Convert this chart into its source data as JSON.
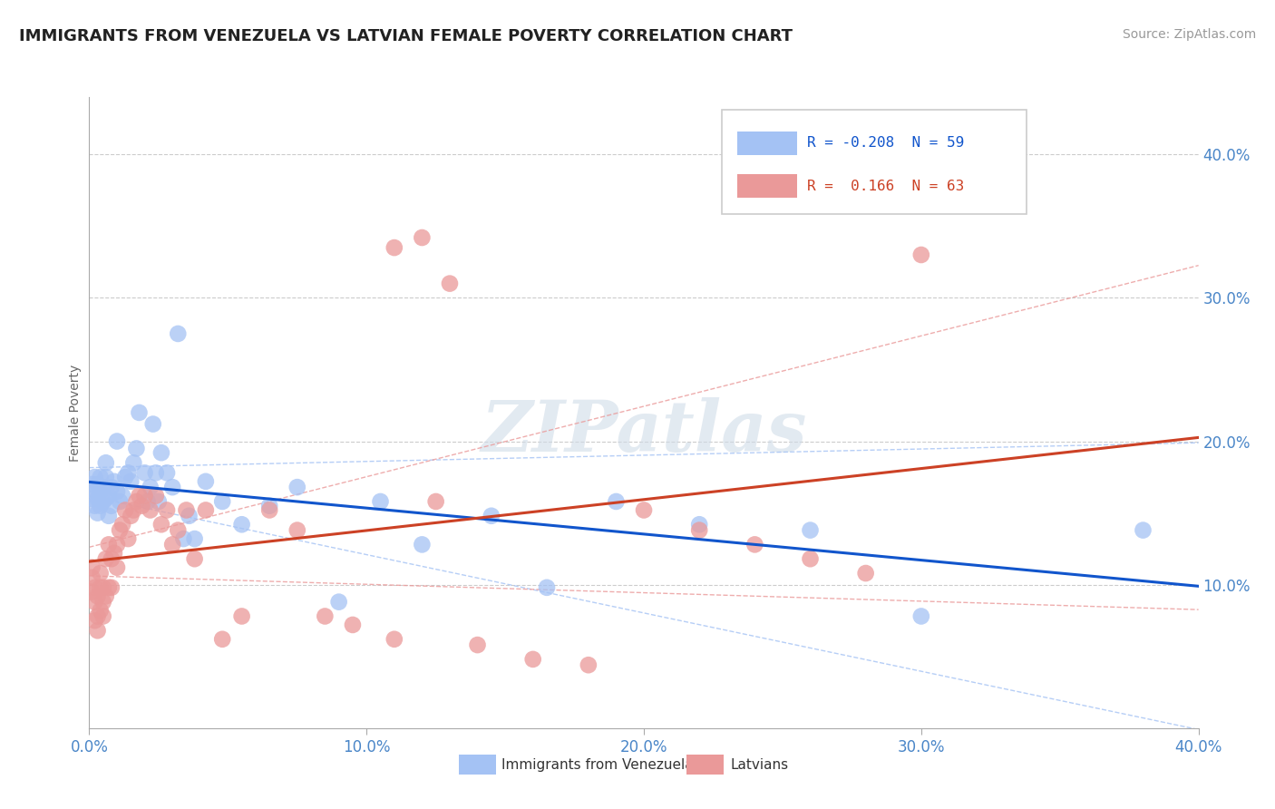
{
  "title": "IMMIGRANTS FROM VENEZUELA VS LATVIAN FEMALE POVERTY CORRELATION CHART",
  "source": "Source: ZipAtlas.com",
  "ylabel": "Female Poverty",
  "xlim": [
    0.0,
    0.42
  ],
  "ylim": [
    -0.005,
    0.46
  ],
  "plot_xlim": [
    0.0,
    0.4
  ],
  "plot_ylim": [
    0.0,
    0.44
  ],
  "xticks": [
    0.0,
    0.1,
    0.2,
    0.3,
    0.4
  ],
  "yticks": [
    0.1,
    0.2,
    0.3,
    0.4
  ],
  "ytick_labels": [
    "10.0%",
    "20.0%",
    "30.0%",
    "40.0%"
  ],
  "xtick_labels": [
    "0.0%",
    "10.0%",
    "20.0%",
    "30.0%",
    "40.0%"
  ],
  "blue_color": "#a4c2f4",
  "pink_color": "#ea9999",
  "blue_line_color": "#1155cc",
  "pink_line_color": "#cc4125",
  "blue_dashed_color": "#a4c2f4",
  "pink_dashed_color": "#ea9999",
  "legend_r_blue": "-0.208",
  "legend_n_blue": "59",
  "legend_r_pink": "0.166",
  "legend_n_pink": "63",
  "legend_label_blue": "Immigrants from Venezuela",
  "legend_label_pink": "Latvians",
  "watermark": "ZIPatlas",
  "background_color": "#ffffff",
  "grid_color": "#cccccc",
  "blue_scatter_x": [
    0.001,
    0.001,
    0.002,
    0.002,
    0.002,
    0.003,
    0.003,
    0.003,
    0.004,
    0.004,
    0.004,
    0.005,
    0.005,
    0.006,
    0.006,
    0.006,
    0.007,
    0.007,
    0.008,
    0.008,
    0.009,
    0.01,
    0.01,
    0.011,
    0.012,
    0.013,
    0.014,
    0.015,
    0.016,
    0.017,
    0.018,
    0.02,
    0.021,
    0.022,
    0.023,
    0.024,
    0.025,
    0.026,
    0.028,
    0.03,
    0.032,
    0.034,
    0.036,
    0.038,
    0.042,
    0.048,
    0.055,
    0.065,
    0.075,
    0.09,
    0.105,
    0.12,
    0.145,
    0.165,
    0.19,
    0.22,
    0.26,
    0.3,
    0.38
  ],
  "blue_scatter_y": [
    0.17,
    0.16,
    0.175,
    0.155,
    0.165,
    0.16,
    0.15,
    0.17,
    0.165,
    0.175,
    0.155,
    0.168,
    0.158,
    0.175,
    0.16,
    0.185,
    0.148,
    0.162,
    0.155,
    0.168,
    0.172,
    0.165,
    0.2,
    0.158,
    0.162,
    0.175,
    0.178,
    0.172,
    0.185,
    0.195,
    0.22,
    0.178,
    0.158,
    0.168,
    0.212,
    0.178,
    0.158,
    0.192,
    0.178,
    0.168,
    0.275,
    0.132,
    0.148,
    0.132,
    0.172,
    0.158,
    0.142,
    0.155,
    0.168,
    0.088,
    0.158,
    0.128,
    0.148,
    0.098,
    0.158,
    0.142,
    0.138,
    0.078,
    0.138
  ],
  "pink_scatter_x": [
    0.001,
    0.001,
    0.001,
    0.002,
    0.002,
    0.002,
    0.003,
    0.003,
    0.003,
    0.004,
    0.004,
    0.004,
    0.005,
    0.005,
    0.005,
    0.006,
    0.006,
    0.007,
    0.007,
    0.008,
    0.008,
    0.009,
    0.01,
    0.01,
    0.011,
    0.012,
    0.013,
    0.014,
    0.015,
    0.016,
    0.017,
    0.018,
    0.019,
    0.02,
    0.022,
    0.024,
    0.026,
    0.028,
    0.03,
    0.032,
    0.035,
    0.038,
    0.042,
    0.048,
    0.055,
    0.065,
    0.075,
    0.085,
    0.095,
    0.11,
    0.125,
    0.14,
    0.16,
    0.18,
    0.2,
    0.22,
    0.24,
    0.26,
    0.28,
    0.3,
    0.11,
    0.12,
    0.13
  ],
  "pink_scatter_y": [
    0.112,
    0.095,
    0.105,
    0.088,
    0.098,
    0.075,
    0.078,
    0.092,
    0.068,
    0.098,
    0.082,
    0.108,
    0.088,
    0.078,
    0.098,
    0.118,
    0.092,
    0.098,
    0.128,
    0.118,
    0.098,
    0.122,
    0.112,
    0.128,
    0.138,
    0.142,
    0.152,
    0.132,
    0.148,
    0.152,
    0.158,
    0.162,
    0.155,
    0.162,
    0.152,
    0.162,
    0.142,
    0.152,
    0.128,
    0.138,
    0.152,
    0.118,
    0.152,
    0.062,
    0.078,
    0.152,
    0.138,
    0.078,
    0.072,
    0.062,
    0.158,
    0.058,
    0.048,
    0.044,
    0.152,
    0.138,
    0.128,
    0.118,
    0.108,
    0.33,
    0.335,
    0.342,
    0.31
  ]
}
